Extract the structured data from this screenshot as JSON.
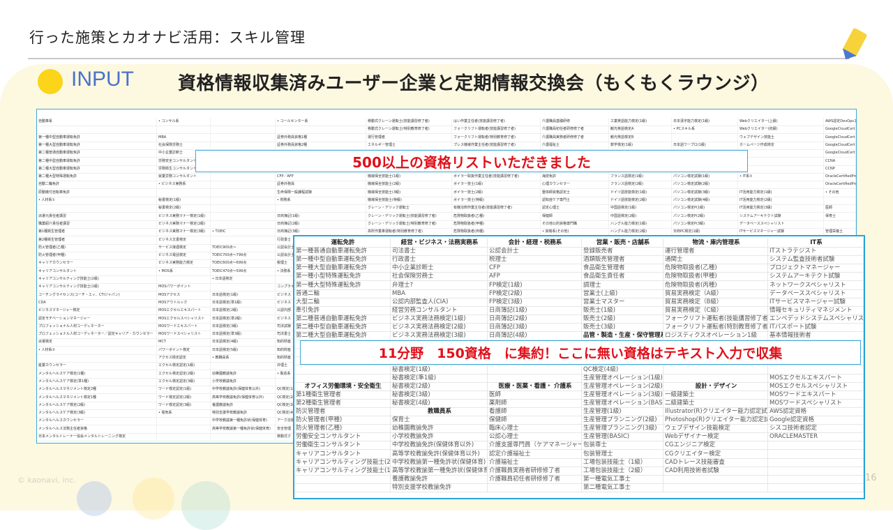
{
  "slide": {
    "title": "行った施策とカオナビ活用：スキル管理",
    "section_label": "INPUT",
    "heading": "資格情報収集済みユーザー企業と定期情報交換会（もくもくラウンジ）",
    "footer": "© kaonavi, inc.",
    "page_number": "16"
  },
  "colors": {
    "accent_blue": "#4a72c9",
    "accent_yellow": "#fcd419",
    "callout_red": "#e0101a",
    "border_blue": "#2aa3d6",
    "panel": "#fdf8e0"
  },
  "callouts": {
    "first": "500以上の資格リストいただきました",
    "second": "11分野　150資格　に集約！ここに無い資格はテキスト入力で収集"
  },
  "raw_list": {
    "rows": [
      [
        "自動車系",
        "• コンサル系",
        "",
        "• コールセンター系",
        "移動式クレーン運転士(技能講習修了者)",
        "はい作業主任者(技能講習修了者)",
        "介護職員基礎研修",
        "工業英語能力検定(1級)",
        "日本漢字能力検定(1級)",
        "Webクリエイター(上級)",
        "AWS認定DevOpsエ"
      ],
      [
        "",
        "",
        "",
        "",
        "移動式クレーン運転士(特別教育修了者)",
        "フォークリフト運転者(技能講習修了者)",
        "介護職員初任者研修修了者",
        "観光英語検定A",
        "• PCスキル系",
        "Webクリエイター(初級)",
        "GoogleCloudCert"
      ],
      [
        "第一種中型自動車運転免許",
        "MBA",
        "",
        "証券外務員資格1種",
        "運行管理者",
        "フォークリフト運転者(特別教育修了者)",
        "介護職員実務者研修修了者",
        "観光英語検定B",
        "",
        "ウェブデザイン技能士",
        "GoogleCloudCert"
      ],
      [
        "第一種大型自動車運転免許",
        "社会保険労務士",
        "",
        "証券外務員資格2種",
        "エネルギー管理士",
        "プレス機械作業主任者(技能講習修了者)",
        "介護福祉士",
        "数学検定(1級)",
        "日本語ワープロ(1級)",
        "ホームページ作成検定",
        "GoogleCloudCert"
      ],
      [
        "第二種普通自動車運転免許",
        "中小企業診断士",
        "",
        "",
        "",
        "",
        "",
        "",
        "",
        "",
        "GoogleCloudCert"
      ],
      [
        "第二種中型自動車運転免許",
        "労務安全コンサルタント",
        "",
        "",
        "",
        "",
        "",
        "",
        "",
        "",
        "CCNA"
      ],
      [
        "第二種大型自動車運転免許",
        "労務衛生コンサルタント",
        "",
        "",
        "",
        "",
        "",
        "",
        "",
        "",
        "CCNP"
      ],
      [
        "第二種大型特殊運転免許",
        "就業労務コンサルタント",
        "",
        "CFP／AFP",
        "機械保全技能士(1級)",
        "ボイラー取扱作業主任者(技能講習修了者)",
        "海技免許",
        "フランス語検定(1級)",
        "パソコン検定試験(1級)",
        "• IT系①",
        "OracleCertifiedProf"
      ],
      [
        "自動二輪免許",
        "• ビジネス実務系",
        "",
        "証券外務員",
        "機械保全技能士(2級)",
        "ボイラー技士(1級)",
        "心理カウンセラー",
        "フランス語検定(2級)",
        "パソコン検定試験(2級)",
        "",
        "OracleCertifiedProf"
      ],
      [
        "原動機付自転車免許",
        "",
        "",
        "生命保険一般課程試験",
        "機械保全技能士(3級)",
        "ボイラー技士(2級)",
        "整体師資格認定士",
        "ドイツ語技能検定(1級)",
        "パソコン検定試験(3級)",
        "IT活用能力検定(1級)",
        "• その他"
      ],
      [
        "• 人材系①",
        "秘書検定(1級)",
        "",
        "• 財務系",
        "機械保全技能士(特級)",
        "ボイラー技士(特級)",
        "認知症ケア専門士",
        "ドイツ語技能検定(2級)",
        "パソコン検定試験(4級)",
        "IT活用能力検定(2級)",
        ""
      ],
      [
        "",
        "秘書検定(2級)",
        "",
        "",
        "クレーン・デリック運転士",
        "有機溶剤作業主任者(技能講習修了者)",
        "認定心理士",
        "中国語検定(1級)",
        "パソコン検定P(1級)",
        "IT活用能力検定(3級)",
        "医師"
      ],
      [
        "派遣元責任者講習",
        "ビジネス実務マナー検定(1級)",
        "",
        "日商簿記(1級)",
        "クレーン・デリック運転士(技能講習修了者)",
        "危険物取扱者(乙種)",
        "保健師",
        "中国語検定(2級)",
        "パソコン検定P(2級)",
        "システムアーキテクト試験",
        "保育士"
      ],
      [
        "職業紹介責任者講習",
        "ビジネス実務マナー検定(2級)",
        "",
        "日商簿記(2級)",
        "クレーン・デリック運転士(特別教育修了者)",
        "危険物取扱者(甲種)",
        "その他公的資格専門職",
        "ハングル能力検定(1級)",
        "パソコン検定P(3級)",
        "データベーススペシャリスト",
        ""
      ],
      [
        "第1種衛生管理者",
        "ビジネス実務マナー検定(3級)",
        "• TOEIC",
        "日商簿記(3級)",
        "高所作業車運転者(特別教育修了者)",
        "危険物取扱者(丙種)",
        "• 資格系(その他)",
        "ハングル能力検定(2級)",
        "日商PC検定(1級)",
        "ITサービスマネージャー試験",
        "管理栄養士"
      ],
      [
        "第2種衛生管理者",
        "ビジネス文書検定",
        "",
        "行政書士"
      ],
      [
        "防火管理者(乙種)",
        "サービス接遇検定",
        "TOEIC900点〜",
        "公認会計士"
      ],
      [
        "防火管理者(甲種)",
        "ビジネス電話検定",
        "TOEIC700点〜799点",
        "公認会計士"
      ],
      [
        "キャリアカウンセラー",
        "ビジネス実務能力検定",
        "TOEIC600点〜699点",
        "税理士"
      ],
      [
        "キャリアコンサルタント",
        "• MOS系",
        "TOEIC470点〜599点",
        "• 法務系"
      ],
      [
        "キャリアコンサルティング技能士(2級)",
        "",
        "• 日本語検定",
        ""
      ],
      [
        "キャリアコンサルティング技能士(1級)",
        "MOSパワーポイント",
        "",
        "コンプライアンス"
      ],
      [
        "コーチングライセンス(コーチ・エィ、CTIジャパン)",
        "MOSアクセス",
        "日本語検定(1級)",
        "ビジネス"
      ],
      [
        "CDA",
        "MOSアウトルック",
        "日本語検定(準1級)",
        "ビジネス"
      ],
      [
        "ビジネスマネージャー検定",
        "MOSエクセルエキスパート",
        "日本語検定(2級)",
        "公認内部"
      ],
      [
        "認定モチベーションマネージャー",
        "MOSエクセルスペシャリスト",
        "日本語検定(準2級)",
        "ビジネス"
      ],
      [
        "プロフェッショナル人材コーディネーター",
        "MOSワードエキスパート",
        "日本語検定(3級)",
        "司法試験"
      ],
      [
        "プロフェッショナル人材コーディネーター／認定キャリア・カウンセラー",
        "MOSワードスペシャリスト",
        "日本語検定(準3級)",
        "司法書士"
      ],
      [
        "派遣検定",
        "MCT",
        "日本語検定(4級)",
        "知的財産"
      ],
      [
        "• 人材系②",
        "パワーポイント検定",
        "日本語検定(5級)",
        "知的財産"
      ],
      [
        "",
        "アクセス検定認定",
        "• 教職員系",
        "知的財産"
      ],
      [
        "産業カウンセラー",
        "エクセル検定認定(1級)",
        "",
        "弁理士"
      ],
      [
        "メンタルヘルスケア検定(1種)",
        "エクセル検定認定(2級)",
        "幼稚園教諭免許",
        "• 製造系"
      ],
      [
        "メンタルヘルスケア検定(準1種)",
        "エクセル検定認定(3級)",
        "小学校教諭免許",
        ""
      ],
      [
        "メンタルヘルスマネジメント検定2種",
        "ワード検定認定(1級)",
        "中学校教諭免許(保健体育以外)",
        "QC検定(1級)"
      ],
      [
        "メンタルヘルスマネジメント検定1種",
        "ワード検定認定(2級)",
        "高等学校教諭免許(保健体育以外)",
        "QC検定(2級)"
      ],
      [
        "メンタルヘルスケア検定(2級)",
        "ワード検定認定(3級)",
        "養護教諭免許",
        "QC検定(3級)"
      ],
      [
        "メンタルヘルスケア検定(3級)",
        "• 電気系",
        "特別支援学校教諭免許",
        "QC検定(4級)"
      ],
      [
        "メンタルヘルスカウンセラー",
        "",
        "中学校教諭第一種免許状(保健体育)",
        "アーク溶接"
      ],
      [
        "メンタルヘルス法務主任者資格",
        "",
        "高等学校教諭第一種免許状(保健体育)",
        "安全管理"
      ],
      [
        "日本メンタルトレーナー協会メンタルトレーニング検定",
        "",
        "",
        "移動式ク"
      ]
    ]
  },
  "consolidated_list": {
    "section_headers": [
      "運転免許",
      "経営・ビジネス・法務実務系",
      "会計・経理・税務系",
      "営業・販売・店舗系",
      "物流・庫内管理系",
      "IT系",
      "品管・製造・生産・保守管理系",
      "オフィス労働環境・安全衛生",
      "医療・医薬・看護・ 介護系",
      "設計・デザイン",
      "教職員系"
    ],
    "rows": [
      [
        "運転免許",
        "経営・ビジネス・法務実務系",
        "会計・経理・税務系",
        "営業・販売・店舗系",
        "物流・庫内管理系",
        "IT系"
      ],
      [
        "第一種普通自動車運転免許",
        "司法書士",
        "公認会計士",
        "登録販売者",
        "運行管理者",
        "ITストラテジスト"
      ],
      [
        "第一種中型自動車運転免許",
        "行政書士",
        "税理士",
        "酒類販売管理者",
        "通関士",
        "システム監査技術者試験"
      ],
      [
        "第一種大型自動車運転免許",
        "中小企業診断士",
        "CFP",
        "食品衛生管理者",
        "危険物取扱者(乙種)",
        "プロジェクトマネージャー"
      ],
      [
        "第一種小型特殊運転免許",
        "社会保険労務士",
        "AFP",
        "食品衛生責任者",
        "危険物取扱者(甲種)",
        "システムアーキテクト試験"
      ],
      [
        "第一種大型特殊運転免許",
        "弁理士?",
        "FP検定(1級)",
        "調理士",
        "危険物取扱者(丙種)",
        "ネットワークスペシャリスト"
      ],
      [
        "普通二輪",
        "MBA",
        "FP検定(2級)",
        "営業士(上級)",
        "貿易実務検定（A級）",
        "データベーススペシャリスト"
      ],
      [
        "大型二輪",
        "公認内部監査人(CIA)",
        "FP検定(3級)",
        "営業士マスター",
        "貿易実務検定（B級）",
        "ITサービスマネージャー試験"
      ],
      [
        "牽引免許",
        "経営労務コンサルタント",
        "日商簿記(1級)",
        "販売士(1級)",
        "貿易実務検定（C級）",
        "情報セキュリティマネジメント"
      ],
      [
        "第二種普通自動車運転免許",
        "ビジネス実務法務検定(1級)",
        "日商簿記(2級)",
        "販売士(2級)",
        "フォークリフト運転者(技能講習修了者)",
        "エンベデッドシステムスペシャリスト"
      ],
      [
        "第二種中型自動車運転免許",
        "ビジネス実務法務検定(2級)",
        "日商簿記(3級)",
        "販売士(3級)",
        "フォークリフト運転者(特別教育修了者)",
        "ITパスポート試験"
      ],
      [
        "第二種大型自動車運転免許",
        "ビジネス実務法務検定(3級)",
        "日商簿記(4級)",
        "品管・製造・生産・保守管理系",
        "ロジスティクスオペレーション1級",
        "基本情報技術者"
      ],
      [
        "",
        "",
        "",
        "",
        "",
        ""
      ],
      [
        "",
        "",
        "",
        "",
        "",
        ""
      ],
      [
        "",
        "",
        "",
        "",
        "",
        ""
      ],
      [
        "",
        "秘書検定(1級)",
        "",
        "QC検定(4級)",
        "",
        ""
      ],
      [
        "",
        "秘書検定(準1級)",
        "",
        "生産管理オペレーション(1級)",
        "",
        "MOSエクセルエキスパート"
      ],
      [
        "オフィス労働環境・安全衛生",
        "秘書検定(2級)",
        "医療・医薬・看護・ 介護系",
        "生産管理オペレーション(2級)",
        "設計・デザイン",
        "MOSエクセルスペシャリスト"
      ],
      [
        "第1種衛生管理者",
        "秘書検定(3級)",
        "医師",
        "生産管理オペレーション(3級)",
        "一級建築士",
        "MOSワードエキスパート"
      ],
      [
        "第2種衛生管理者",
        "秘書検定(4級)",
        "薬剤師",
        "生産管理オペレーション(BASIC)",
        "二級建築士",
        "MOSワードスペシャリスト"
      ],
      [
        "防災管理者",
        "教職員系",
        "看護師",
        "生産管理(1級)",
        "Illustrator(R)クリエイター能力認定試験",
        "AWS認定資格"
      ],
      [
        "防火管理者(甲種)",
        "保育士",
        "保健師",
        "生産管理プランニング(2級)",
        "Photoshop(R)クリエイター能力認定試験",
        "Google認定資格"
      ],
      [
        "防火管理者(乙種)",
        "幼稚園教諭免許",
        "臨床心理士",
        "生産管理プランニング(3級)",
        "ウェブデザイン技能検定",
        "シスコ技術者認定"
      ],
      [
        "労働安全コンサルタント",
        "小学校教諭免許",
        "公認心理士",
        "生産管理(BASIC)",
        "Webデザイナー検定",
        "ORACLEMASTER"
      ],
      [
        "労働衛生コンサルタント",
        "中学校教諭免許(保健体育以外)",
        "介護支援専門員（ケアマネージャー）",
        "包装専士",
        "CGエンジニア検定",
        ""
      ],
      [
        "キャリアコンサルタント",
        "高等学校教諭免許(保健体育以外)",
        "認定介護福祉士",
        "包装管理士",
        "CGクリエイター検定",
        ""
      ],
      [
        "キャリアコンサルティング技能士(2級)",
        "中学校教諭第一種免許状(保健体育)",
        "介護福祉士",
        "工場包装技能士（1級）",
        "CADトレース技能審査",
        ""
      ],
      [
        "キャリアコンサルティング技能士(1級)",
        "高等学校教諭第一種免許状(保健体育)",
        "介護職員実務者研修修了者",
        "工場包装技能士（2級）",
        "CAD利用技術者試験",
        ""
      ],
      [
        "",
        "養護教諭免許",
        "介護職員初任者研修修了者",
        "第一種電気工事士",
        "",
        ""
      ],
      [
        "",
        "特別支援学校教諭免許",
        "",
        "第二種電気工事士",
        "",
        ""
      ]
    ]
  }
}
